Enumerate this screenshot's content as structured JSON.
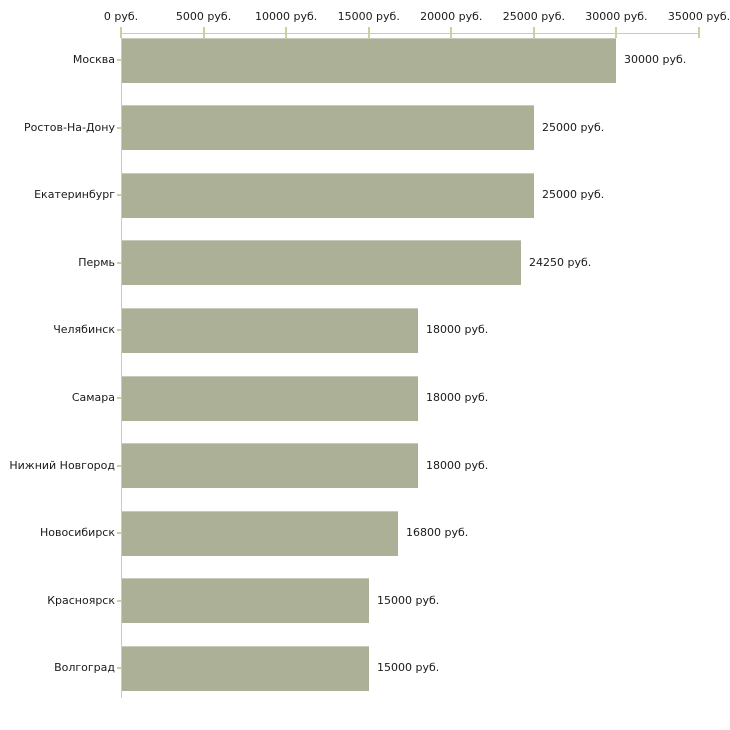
{
  "chart_data": {
    "type": "bar",
    "orientation": "horizontal",
    "title": "",
    "xlabel": "",
    "ylabel": "",
    "categories": [
      "Москва",
      "Ростов-На-Дону",
      "Екатеринбург",
      "Пермь",
      "Челябинск",
      "Самара",
      "Нижний Новгород",
      "Новосибирск",
      "Красноярск",
      "Волгоград"
    ],
    "values": [
      30000,
      25000,
      25000,
      24250,
      18000,
      18000,
      18000,
      16800,
      15000,
      15000
    ],
    "value_labels": [
      "30000 руб.",
      "25000 руб.",
      "25000 руб.",
      "24250 руб.",
      "18000 руб.",
      "18000 руб.",
      "18000 руб.",
      "16800 руб.",
      "15000 руб.",
      "15000 руб."
    ],
    "x_axis": {
      "position": "top",
      "tick_values": [
        0,
        5000,
        10000,
        15000,
        20000,
        25000,
        30000,
        35000
      ],
      "tick_labels": [
        "0 руб.",
        "5000 руб.",
        "10000 руб.",
        "15000 руб.",
        "20000 руб.",
        "25000 руб.",
        "30000 руб.",
        "35000 руб."
      ]
    },
    "xlim": [
      0,
      35000
    ],
    "grid": false,
    "legend": false,
    "colors": {
      "bar_fill": "#abb096",
      "bar_top_edge": "#c8cbbb",
      "axis_line": "#c9c9c9",
      "tick_mark": "#cfcf9e",
      "text": "#1a1a1a",
      "background": "#ffffff"
    }
  }
}
